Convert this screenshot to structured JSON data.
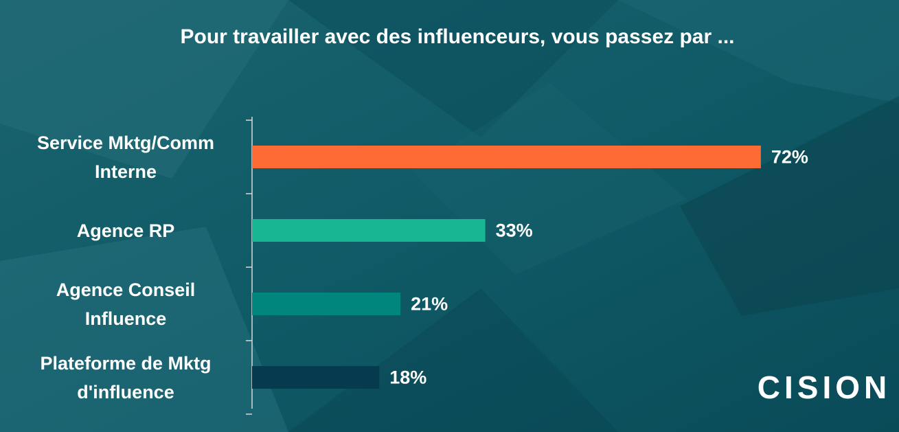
{
  "chart_data": {
    "type": "bar",
    "orientation": "horizontal",
    "title": "Pour travailler avec des influenceurs, vous passez par ...",
    "categories": [
      "Service Mktg/Comm Interne",
      "Agence RP",
      "Agence Conseil Influence",
      "Plateforme de Mktg d'influence"
    ],
    "values": [
      72,
      33,
      21,
      18
    ],
    "value_labels": [
      "72%",
      "33%",
      "21%",
      "18%"
    ],
    "colors": [
      "#ff6b35",
      "#17b794",
      "#00867c",
      "#063a4f"
    ],
    "logo": "CISION"
  }
}
